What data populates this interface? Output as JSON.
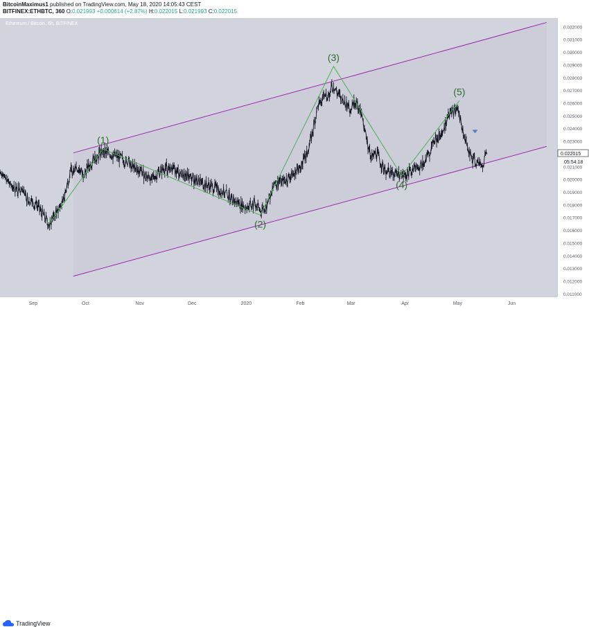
{
  "header": {
    "publisher": "BitcoinMaximus1",
    "published_text": "published on TradingView.com, May 18, 2020 14:05:43 CEST",
    "symbol_line": "BITFINEX:ETHBTC, 360",
    "ohlc": {
      "o_label": "O:",
      "o": "0.021993",
      "change": "+0.000614 (+2.87%)",
      "h_label": "H:",
      "h": "0.022015",
      "l_label": "L:",
      "l": "0.021993",
      "c_label": "C:",
      "c": "0.022015"
    }
  },
  "chart_watermark": "Ethereum / Bitcoin, 6h, BITFINEX",
  "price_label": {
    "value": "0.022015",
    "countdown": "05:54:18"
  },
  "footer": {
    "brand": "TradingView"
  },
  "colors": {
    "plot_bg": "#d1d4dc",
    "channel_fill": "#ccccd9",
    "channel_line": "#9c27b0",
    "wave_line": "#4caf50",
    "wave_label": "#2e6b2e",
    "candle": "#131722",
    "price_tag": "#ffffff",
    "marker": "#4a7fd4"
  },
  "chart_data": {
    "type": "line",
    "title": "Ethereum / Bitcoin, 6h, BITFINEX",
    "xlabel": "",
    "ylabel": "",
    "x_ticks": [
      "Sep",
      "Oct",
      "Nov",
      "Dec",
      "2020",
      "Feb",
      "Mar",
      "Apr",
      "May",
      "Jun"
    ],
    "y_ticks": [
      "0.011000",
      "0.012000",
      "0.013000",
      "0.014000",
      "0.015000",
      "0.016000",
      "0.017000",
      "0.018000",
      "0.019000",
      "0.020000",
      "0.021000",
      "0.022000",
      "0.023000",
      "0.024000",
      "0.025000",
      "0.026000",
      "0.027000",
      "0.028000",
      "0.029000",
      "0.030000",
      "0.031000",
      "0.032000"
    ],
    "ylim": [
      0.0108,
      0.0327
    ],
    "x_range": [
      "2019-08-13",
      "2020-06-27"
    ],
    "series": [
      {
        "values": [
          [
            "2019-08-13",
            0.0206
          ],
          [
            "2019-08-20",
            0.0195
          ],
          [
            "2019-08-27",
            0.0188
          ],
          [
            "2019-09-03",
            0.018
          ],
          [
            "2019-09-10",
            0.0165
          ],
          [
            "2019-09-15",
            0.0176
          ],
          [
            "2019-09-18",
            0.0182
          ],
          [
            "2019-09-22",
            0.0205
          ],
          [
            "2019-09-25",
            0.0211
          ],
          [
            "2019-09-30",
            0.0204
          ],
          [
            "2019-10-05",
            0.0215
          ],
          [
            "2019-10-11",
            0.0223
          ],
          [
            "2019-10-17",
            0.0219
          ],
          [
            "2019-10-24",
            0.0215
          ],
          [
            "2019-10-31",
            0.0207
          ],
          [
            "2019-11-08",
            0.0201
          ],
          [
            "2019-11-16",
            0.021
          ],
          [
            "2019-11-25",
            0.0205
          ],
          [
            "2019-12-05",
            0.0198
          ],
          [
            "2019-12-15",
            0.0193
          ],
          [
            "2019-12-22",
            0.0188
          ],
          [
            "2019-12-27",
            0.0182
          ],
          [
            "2020-01-01",
            0.0178
          ],
          [
            "2020-01-06",
            0.0181
          ],
          [
            "2020-01-09",
            0.0176
          ],
          [
            "2020-01-13",
            0.018
          ],
          [
            "2020-01-17",
            0.0197
          ],
          [
            "2020-01-22",
            0.0198
          ],
          [
            "2020-01-28",
            0.0205
          ],
          [
            "2020-02-01",
            0.0209
          ],
          [
            "2020-02-06",
            0.0225
          ],
          [
            "2020-02-11",
            0.0258
          ],
          [
            "2020-02-17",
            0.0268
          ],
          [
            "2020-02-20",
            0.0273
          ],
          [
            "2020-02-25",
            0.0262
          ],
          [
            "2020-03-01",
            0.0255
          ],
          [
            "2020-03-04",
            0.0263
          ],
          [
            "2020-03-08",
            0.0245
          ],
          [
            "2020-03-12",
            0.0218
          ],
          [
            "2020-03-15",
            0.0222
          ],
          [
            "2020-03-20",
            0.0208
          ],
          [
            "2020-03-26",
            0.0205
          ],
          [
            "2020-03-30",
            0.0202
          ],
          [
            "2020-04-05",
            0.0207
          ],
          [
            "2020-04-12",
            0.0212
          ],
          [
            "2020-04-17",
            0.0228
          ],
          [
            "2020-04-22",
            0.0237
          ],
          [
            "2020-04-26",
            0.0252
          ],
          [
            "2020-04-30",
            0.0255
          ],
          [
            "2020-05-02",
            0.0251
          ],
          [
            "2020-05-05",
            0.0232
          ],
          [
            "2020-05-09",
            0.0218
          ],
          [
            "2020-05-12",
            0.0213
          ],
          [
            "2020-05-15",
            0.0211
          ],
          [
            "2020-05-18",
            0.022
          ]
        ]
      }
    ],
    "annotations": {
      "channel_upper": [
        [
          "2019-09-24",
          0.0221
        ],
        [
          "2020-06-21",
          0.03235
        ]
      ],
      "channel_lower": [
        [
          "2019-09-24",
          0.0124
        ],
        [
          "2020-06-21",
          0.0226
        ]
      ],
      "waves": [
        {
          "label": "(1)",
          "x": "2019-10-11",
          "y": 0.0224
        },
        {
          "label": "(2)",
          "x": "2020-01-09",
          "y": 0.0172
        },
        {
          "label": "(3)",
          "x": "2020-02-20",
          "y": 0.0289
        },
        {
          "label": "(4)",
          "x": "2020-03-30",
          "y": 0.0203
        },
        {
          "label": "(5)",
          "x": "2020-05-02",
          "y": 0.0262
        }
      ],
      "wave_path": [
        [
          "2019-09-10",
          0.0165
        ],
        [
          "2019-10-11",
          0.0224
        ],
        [
          "2020-01-09",
          0.0172
        ],
        [
          "2020-02-20",
          0.0289
        ],
        [
          "2020-03-30",
          0.0203
        ],
        [
          "2020-05-02",
          0.0262
        ]
      ],
      "marker": {
        "x": "2020-05-11",
        "y": 0.0238
      }
    }
  }
}
